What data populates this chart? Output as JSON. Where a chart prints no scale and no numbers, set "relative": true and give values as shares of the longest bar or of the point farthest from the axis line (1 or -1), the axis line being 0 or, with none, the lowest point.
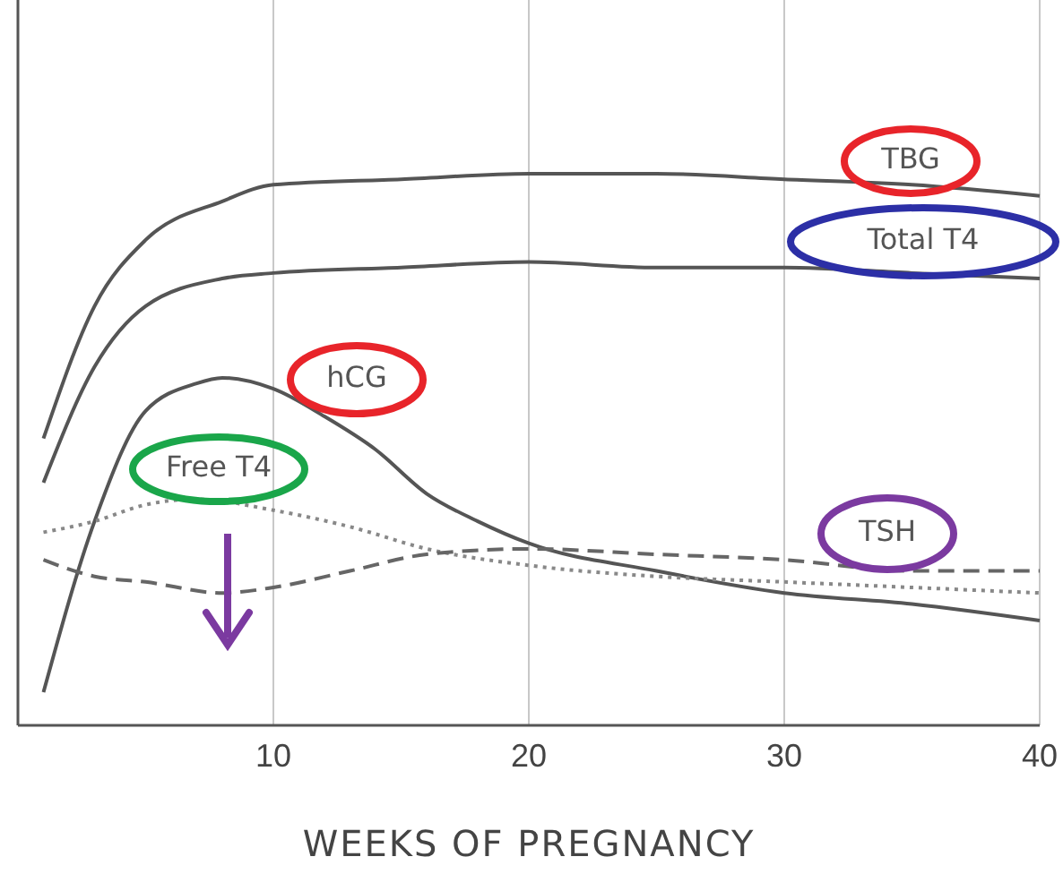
{
  "chart_data": {
    "type": "line",
    "relative": true,
    "xlabel": "WEEKS OF PREGNANCY",
    "xlim": [
      0,
      40
    ],
    "xticks": [
      10,
      20,
      30,
      40
    ],
    "grid": "x",
    "tick_labels": "x",
    "marker": "none",
    "series": [
      {
        "name": "TBG",
        "color": "#555555",
        "line_style": "solid",
        "x": [
          1,
          3,
          5,
          8,
          10,
          15,
          20,
          25,
          30,
          35,
          40
        ],
        "values": [
          0.52,
          0.76,
          0.88,
          0.95,
          0.98,
          0.99,
          1,
          1,
          0.99,
          0.98,
          0.96
        ]
      },
      {
        "name": "Total T4",
        "color": "#555555",
        "line_style": "solid",
        "x": [
          1,
          3,
          5,
          8,
          10,
          15,
          20,
          25,
          30,
          35,
          40
        ],
        "values": [
          0.44,
          0.65,
          0.76,
          0.81,
          0.82,
          0.83,
          0.84,
          0.83,
          0.83,
          0.82,
          0.81
        ]
      },
      {
        "name": "hCG",
        "color": "#555555",
        "line_style": "solid",
        "x": [
          1,
          3,
          5,
          7,
          8,
          10,
          12,
          14,
          16,
          18,
          20,
          25,
          30,
          35,
          40
        ],
        "values": [
          0.06,
          0.37,
          0.57,
          0.62,
          0.63,
          0.61,
          0.56,
          0.5,
          0.42,
          0.37,
          0.33,
          0.28,
          0.24,
          0.22,
          0.19
        ]
      },
      {
        "name": "Free T4",
        "color": "#888888",
        "line_style": "dotted",
        "x": [
          1,
          3,
          5,
          7,
          10,
          13,
          16,
          20,
          25,
          30,
          35,
          40
        ],
        "values": [
          0.35,
          0.37,
          0.4,
          0.41,
          0.39,
          0.36,
          0.32,
          0.29,
          0.27,
          0.26,
          0.25,
          0.24
        ]
      },
      {
        "name": "TSH",
        "color": "#666666",
        "line_style": "dashed",
        "x": [
          1,
          3,
          5,
          8,
          10,
          13,
          16,
          20,
          25,
          30,
          35,
          40
        ],
        "values": [
          0.3,
          0.27,
          0.26,
          0.24,
          0.25,
          0.28,
          0.31,
          0.32,
          0.31,
          0.3,
          0.28,
          0.28
        ]
      }
    ]
  }
}
